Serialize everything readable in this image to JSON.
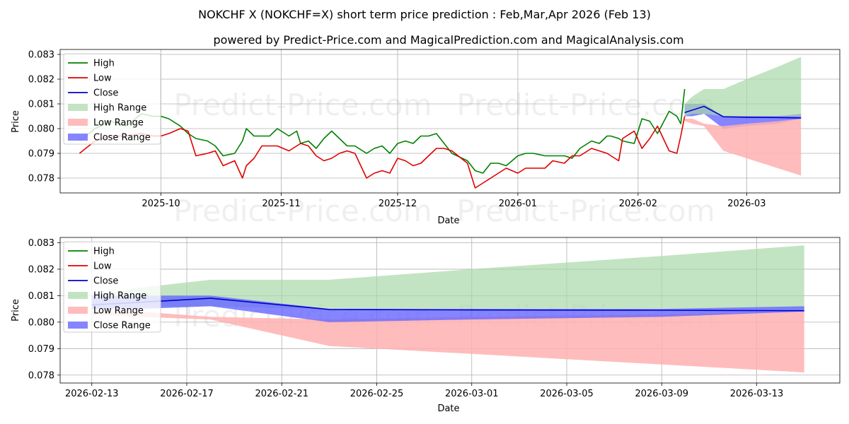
{
  "figure": {
    "title": "NOKCHF X (NOKCHF=X) short term price prediction : Feb,Mar,Apr 2026 (Feb 13)",
    "subtitle": "powered by Predict-Price.com and MagicalPrediction.com and MagicalAnalysis.com",
    "watermark": "Predict-Price.com"
  },
  "colors": {
    "high": "#008000",
    "low": "#e00000",
    "close": "#0000cc",
    "high_range": "#a8d8a8",
    "low_range": "#ffb0b0",
    "close_range": "#6666ff"
  },
  "chart_data": [
    {
      "type": "line",
      "title": "",
      "xlabel": "Date",
      "ylabel": "Price",
      "x_range": [
        "2025-09-05",
        "2026-03-25"
      ],
      "ylim": [
        0.0774,
        0.0832
      ],
      "grid": true,
      "legend_position": "top-left",
      "x_ticks": [
        "2025-10-01",
        "2025-11-01",
        "2025-12-01",
        "2026-01-01",
        "2026-02-01",
        "2026-03-01"
      ],
      "x_tick_labels": [
        "2025-10",
        "2025-11",
        "2025-12",
        "2026-01",
        "2026-02",
        "2026-03"
      ],
      "y_ticks": [
        0.078,
        0.079,
        0.08,
        0.081,
        0.082,
        0.083
      ],
      "y_tick_labels": [
        "0.078",
        "0.079",
        "0.080",
        "0.081",
        "0.082",
        "0.083"
      ],
      "legend": [
        "High",
        "Low",
        "Close",
        "High Range",
        "Low Range",
        "Close Range"
      ],
      "series": [
        {
          "name": "High",
          "x": [
            "2025-09-10",
            "2025-09-14",
            "2025-09-18",
            "2025-09-22",
            "2025-09-26",
            "2025-09-29",
            "2025-10-01",
            "2025-10-03",
            "2025-10-06",
            "2025-10-08",
            "2025-10-10",
            "2025-10-13",
            "2025-10-15",
            "2025-10-17",
            "2025-10-20",
            "2025-10-22",
            "2025-10-23",
            "2025-10-25",
            "2025-10-27",
            "2025-10-29",
            "2025-10-31",
            "2025-11-03",
            "2025-11-05",
            "2025-11-06",
            "2025-11-08",
            "2025-11-10",
            "2025-11-12",
            "2025-11-14",
            "2025-11-16",
            "2025-11-18",
            "2025-11-20",
            "2025-11-23",
            "2025-11-25",
            "2025-11-27",
            "2025-11-29",
            "2025-12-01",
            "2025-12-03",
            "2025-12-05",
            "2025-12-07",
            "2025-12-09",
            "2025-12-11",
            "2025-12-13",
            "2025-12-15",
            "2025-12-19",
            "2025-12-21",
            "2025-12-23",
            "2025-12-25",
            "2025-12-27",
            "2025-12-29",
            "2026-01-01",
            "2026-01-03",
            "2026-01-05",
            "2026-01-08",
            "2026-01-10",
            "2026-01-13",
            "2026-01-15",
            "2026-01-17",
            "2026-01-20",
            "2026-01-22",
            "2026-01-24",
            "2026-01-25",
            "2026-01-27",
            "2026-01-28",
            "2026-01-31",
            "2026-02-02",
            "2026-02-04",
            "2026-02-06",
            "2026-02-09",
            "2026-02-11",
            "2026-02-12",
            "2026-02-13"
          ],
          "values": [
            0.0795,
            0.08,
            0.0803,
            0.0801,
            0.0806,
            0.0805,
            0.0805,
            0.0804,
            0.0801,
            0.0798,
            0.0796,
            0.0795,
            0.0793,
            0.0789,
            0.079,
            0.0795,
            0.08,
            0.0797,
            0.0797,
            0.0797,
            0.08,
            0.0797,
            0.0799,
            0.0794,
            0.0795,
            0.0792,
            0.0796,
            0.0799,
            0.0796,
            0.0793,
            0.0793,
            0.079,
            0.0792,
            0.0793,
            0.079,
            0.0794,
            0.0795,
            0.0794,
            0.0797,
            0.0797,
            0.0798,
            0.0794,
            0.079,
            0.0787,
            0.0783,
            0.0782,
            0.0786,
            0.0786,
            0.0785,
            0.0789,
            0.079,
            0.079,
            0.0789,
            0.0789,
            0.0789,
            0.0788,
            0.0792,
            0.0795,
            0.0794,
            0.0797,
            0.0797,
            0.0796,
            0.0795,
            0.0794,
            0.0804,
            0.0803,
            0.0798,
            0.0807,
            0.0805,
            0.0802,
            0.0816
          ]
        },
        {
          "name": "Low",
          "x": [
            "2025-09-10",
            "2025-09-14",
            "2025-09-18",
            "2025-09-22",
            "2025-09-26",
            "2025-09-29",
            "2025-10-01",
            "2025-10-03",
            "2025-10-06",
            "2025-10-08",
            "2025-10-10",
            "2025-10-13",
            "2025-10-15",
            "2025-10-17",
            "2025-10-20",
            "2025-10-22",
            "2025-10-23",
            "2025-10-25",
            "2025-10-27",
            "2025-10-29",
            "2025-10-31",
            "2025-11-03",
            "2025-11-05",
            "2025-11-06",
            "2025-11-08",
            "2025-11-10",
            "2025-11-12",
            "2025-11-14",
            "2025-11-16",
            "2025-11-18",
            "2025-11-20",
            "2025-11-23",
            "2025-11-25",
            "2025-11-27",
            "2025-11-29",
            "2025-12-01",
            "2025-12-03",
            "2025-12-05",
            "2025-12-07",
            "2025-12-09",
            "2025-12-11",
            "2025-12-13",
            "2025-12-15",
            "2025-12-19",
            "2025-12-21",
            "2025-12-23",
            "2025-12-25",
            "2025-12-27",
            "2025-12-29",
            "2026-01-01",
            "2026-01-03",
            "2026-01-05",
            "2026-01-08",
            "2026-01-10",
            "2026-01-13",
            "2026-01-15",
            "2026-01-17",
            "2026-01-20",
            "2026-01-22",
            "2026-01-24",
            "2026-01-25",
            "2026-01-27",
            "2026-01-28",
            "2026-01-31",
            "2026-02-02",
            "2026-02-04",
            "2026-02-06",
            "2026-02-09",
            "2026-02-11",
            "2026-02-12",
            "2026-02-13"
          ],
          "values": [
            0.079,
            0.0795,
            0.0797,
            0.0797,
            0.0798,
            0.0797,
            0.0797,
            0.0798,
            0.08,
            0.0799,
            0.0789,
            0.079,
            0.0791,
            0.0785,
            0.0787,
            0.078,
            0.0785,
            0.0788,
            0.0793,
            0.0793,
            0.0793,
            0.0791,
            0.0793,
            0.0794,
            0.0793,
            0.0789,
            0.0787,
            0.0788,
            0.079,
            0.0791,
            0.079,
            0.078,
            0.0782,
            0.0783,
            0.0782,
            0.0788,
            0.0787,
            0.0785,
            0.0786,
            0.0789,
            0.0792,
            0.0792,
            0.0791,
            0.0786,
            0.0776,
            0.0778,
            0.078,
            0.0782,
            0.0784,
            0.0782,
            0.0784,
            0.0784,
            0.0784,
            0.0787,
            0.0786,
            0.0789,
            0.0789,
            0.0792,
            0.0791,
            0.079,
            0.0789,
            0.0787,
            0.0796,
            0.0799,
            0.0792,
            0.0796,
            0.0801,
            0.0791,
            0.079,
            0.0797,
            0.0805
          ]
        },
        {
          "name": "Close Range",
          "x": [
            "2026-02-13",
            "2026-02-15",
            "2026-02-18",
            "2026-02-23",
            "2026-03-01",
            "2026-03-09",
            "2026-03-15"
          ],
          "upper": [
            0.081,
            0.081,
            0.081,
            0.0805,
            0.0805,
            0.0805,
            0.0806
          ],
          "lower": [
            0.0805,
            0.0805,
            0.0806,
            0.08,
            0.0801,
            0.0802,
            0.0804
          ]
        },
        {
          "name": "Close",
          "x": [
            "2026-02-13",
            "2026-02-15",
            "2026-02-18",
            "2026-02-23",
            "2026-03-01",
            "2026-03-09",
            "2026-03-15"
          ],
          "values": [
            0.08065,
            0.08075,
            0.0809,
            0.08048,
            0.08046,
            0.08045,
            0.08043
          ]
        },
        {
          "name": "High Range",
          "x": [
            "2026-02-13",
            "2026-02-15",
            "2026-02-18",
            "2026-02-23",
            "2026-03-01",
            "2026-03-09",
            "2026-03-15"
          ],
          "upper": [
            0.081,
            0.0813,
            0.0816,
            0.0816,
            0.082,
            0.0825,
            0.0829
          ],
          "lower": [
            0.0805,
            0.0806,
            0.0806,
            0.0805,
            0.0805,
            0.0805,
            0.0805
          ]
        },
        {
          "name": "Low Range",
          "x": [
            "2026-02-13",
            "2026-02-15",
            "2026-02-18",
            "2026-02-23",
            "2026-03-01",
            "2026-03-09",
            "2026-03-15"
          ],
          "upper": [
            0.0804,
            0.0804,
            0.0802,
            0.0801,
            0.0802,
            0.0803,
            0.0804
          ],
          "lower": [
            0.0803,
            0.0802,
            0.0801,
            0.0791,
            0.0788,
            0.0784,
            0.0781
          ]
        }
      ]
    },
    {
      "type": "line",
      "title": "",
      "xlabel": "Date",
      "ylabel": "Price",
      "x_range": [
        "2026-02-11T16:00",
        "2026-03-16T12:00"
      ],
      "ylim": [
        0.0777,
        0.0832
      ],
      "grid": true,
      "legend_position": "top-left",
      "x_ticks": [
        "2026-02-13",
        "2026-02-17",
        "2026-02-21",
        "2026-02-25",
        "2026-03-01",
        "2026-03-05",
        "2026-03-09",
        "2026-03-13"
      ],
      "x_tick_labels": [
        "2026-02-13",
        "2026-02-17",
        "2026-02-21",
        "2026-02-25",
        "2026-03-01",
        "2026-03-05",
        "2026-03-09",
        "2026-03-13"
      ],
      "y_ticks": [
        0.078,
        0.079,
        0.08,
        0.081,
        0.082,
        0.083
      ],
      "y_tick_labels": [
        "0.078",
        "0.079",
        "0.080",
        "0.081",
        "0.082",
        "0.083"
      ],
      "legend": [
        "High",
        "Low",
        "Close",
        "High Range",
        "Low Range",
        "Close Range"
      ],
      "series": [
        {
          "name": "High Range",
          "x": [
            "2026-02-13",
            "2026-02-15",
            "2026-02-18",
            "2026-02-23",
            "2026-03-01",
            "2026-03-09",
            "2026-03-15"
          ],
          "upper": [
            0.081,
            0.0813,
            0.0816,
            0.0816,
            0.082,
            0.0825,
            0.0829
          ],
          "lower": [
            0.0805,
            0.0806,
            0.0806,
            0.0805,
            0.0805,
            0.0805,
            0.0805
          ]
        },
        {
          "name": "Low Range",
          "x": [
            "2026-02-13",
            "2026-02-15",
            "2026-02-18",
            "2026-02-23",
            "2026-03-01",
            "2026-03-09",
            "2026-03-15"
          ],
          "upper": [
            0.0804,
            0.0804,
            0.0802,
            0.0801,
            0.0802,
            0.0803,
            0.0804
          ],
          "lower": [
            0.0803,
            0.0802,
            0.0801,
            0.0791,
            0.0788,
            0.0784,
            0.0781
          ]
        },
        {
          "name": "Close Range",
          "x": [
            "2026-02-13",
            "2026-02-15",
            "2026-02-18",
            "2026-02-23",
            "2026-03-01",
            "2026-03-09",
            "2026-03-15"
          ],
          "upper": [
            0.081,
            0.081,
            0.081,
            0.0805,
            0.0805,
            0.0805,
            0.0806
          ],
          "lower": [
            0.0805,
            0.0805,
            0.0806,
            0.08,
            0.0801,
            0.0802,
            0.0804
          ]
        },
        {
          "name": "Close",
          "x": [
            "2026-02-13",
            "2026-02-15",
            "2026-02-18",
            "2026-02-23",
            "2026-03-01",
            "2026-03-09",
            "2026-03-15"
          ],
          "values": [
            0.08065,
            0.08075,
            0.0809,
            0.08048,
            0.08046,
            0.08045,
            0.08043
          ]
        }
      ]
    }
  ]
}
